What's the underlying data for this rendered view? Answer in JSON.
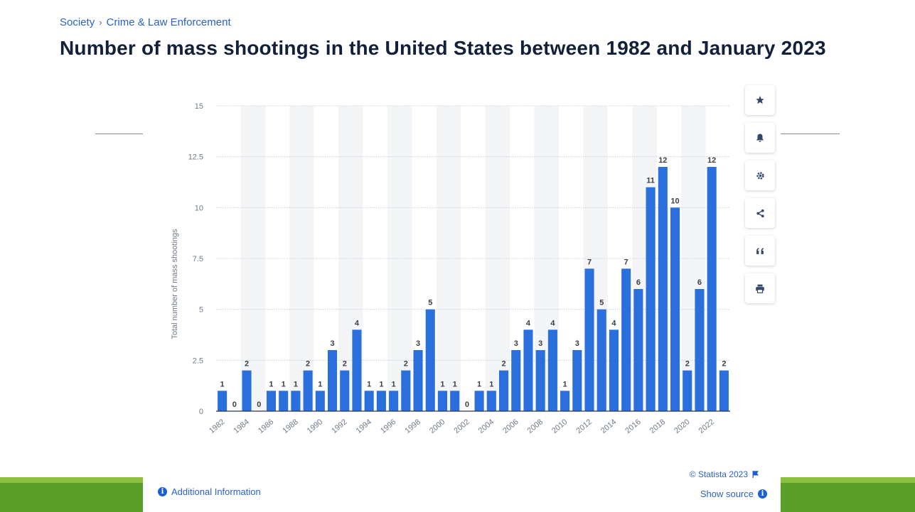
{
  "breadcrumb": {
    "items": [
      "Society",
      "Crime & Law Enforcement"
    ],
    "separator": "›"
  },
  "title": "Number of mass shootings in the United States between 1982 and January 2023",
  "toolbar": {
    "icons": [
      "star-icon",
      "bell-icon",
      "gear-icon",
      "share-icon",
      "quote-icon",
      "print-icon"
    ]
  },
  "footer": {
    "additional_info": "Additional Information",
    "copyright": "© Statista 2023",
    "show_source": "Show source"
  },
  "colors": {
    "bar": "#2a6fdb",
    "title": "#12203a",
    "link": "#2a62c9",
    "green": "#5b9e2a"
  },
  "chart_data": {
    "type": "bar",
    "title": "",
    "xlabel": "",
    "ylabel": "Total number of mass shootings",
    "ylim": [
      0,
      15
    ],
    "yticks": [
      0,
      2.5,
      5,
      7.5,
      10,
      12.5,
      15
    ],
    "ytick_labels": [
      "0",
      "2.5",
      "5",
      "7.5",
      "10",
      "12.5",
      "15"
    ],
    "grid": true,
    "categories": [
      "1982",
      "1983",
      "1984",
      "1985",
      "1986",
      "1987",
      "1988",
      "1989",
      "1990",
      "1991",
      "1992",
      "1993",
      "1994",
      "1995",
      "1996",
      "1997",
      "1998",
      "1999",
      "2000",
      "2001",
      "2002",
      "2003",
      "2004",
      "2005",
      "2006",
      "2007",
      "2008",
      "2009",
      "2010",
      "2011",
      "2012",
      "2013",
      "2014",
      "2015",
      "2016",
      "2017",
      "2018",
      "2019",
      "2020",
      "2021",
      "2022",
      "2023"
    ],
    "xtick_labels": [
      "1982",
      "1984",
      "1986",
      "1988",
      "1990",
      "1992",
      "1994",
      "1996",
      "1998",
      "2000",
      "2002",
      "2004",
      "2006",
      "2008",
      "2010",
      "2012",
      "2014",
      "2016",
      "2018",
      "2020",
      "2022"
    ],
    "values": [
      1,
      0,
      2,
      0,
      1,
      1,
      1,
      2,
      1,
      3,
      2,
      4,
      1,
      1,
      1,
      2,
      3,
      5,
      1,
      1,
      0,
      1,
      1,
      2,
      3,
      4,
      3,
      4,
      1,
      3,
      7,
      5,
      4,
      7,
      6,
      11,
      12,
      10,
      2,
      6,
      12,
      2
    ]
  }
}
